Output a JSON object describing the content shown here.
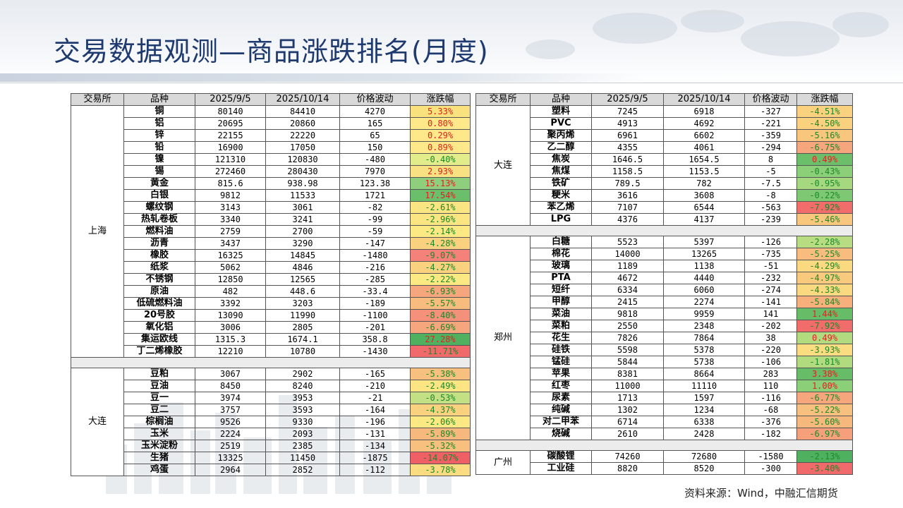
{
  "title": "交易数据观测—商品涨跌排名(月度)",
  "source": "资料来源：Wind，中融汇信期货",
  "headers": [
    "交易所",
    "品种",
    "2025/9/5",
    "2025/10/14",
    "价格波动",
    "涨跌幅"
  ],
  "left_groups": [
    {
      "exchange": "上海",
      "rows": [
        {
          "name": "铜",
          "v1": "80140",
          "v2": "84410",
          "chg": "4270",
          "pct": "5.33%",
          "bg": "#f9e27d",
          "color": "#e02020"
        },
        {
          "name": "铝",
          "v1": "20695",
          "v2": "20860",
          "chg": "165",
          "pct": "0.80%",
          "bg": "#ffe88a",
          "color": "#e02020"
        },
        {
          "name": "锌",
          "v1": "22155",
          "v2": "22220",
          "chg": "65",
          "pct": "0.29%",
          "bg": "#ffe88a",
          "color": "#e02020"
        },
        {
          "name": "铅",
          "v1": "16900",
          "v2": "17050",
          "chg": "150",
          "pct": "0.89%",
          "bg": "#ffe88a",
          "color": "#e02020"
        },
        {
          "name": "镍",
          "v1": "121310",
          "v2": "120830",
          "chg": "-480",
          "pct": "-0.40%",
          "bg": "#e2ec8a",
          "color": "#1a8a2a"
        },
        {
          "name": "锡",
          "v1": "272460",
          "v2": "280430",
          "chg": "7970",
          "pct": "2.93%",
          "bg": "#f7e183",
          "color": "#e02020"
        },
        {
          "name": "黄金",
          "v1": "815.6",
          "v2": "938.98",
          "chg": "123.38",
          "pct": "15.13%",
          "bg": "#8fce7d",
          "color": "#e02020"
        },
        {
          "name": "白银",
          "v1": "9812",
          "v2": "11533",
          "chg": "1721",
          "pct": "17.54%",
          "bg": "#6cbf6a",
          "color": "#e02020"
        },
        {
          "name": "螺纹钢",
          "v1": "3143",
          "v2": "3061",
          "chg": "-82",
          "pct": "-2.61%",
          "bg": "#fbe482",
          "color": "#1a8a2a"
        },
        {
          "name": "热轧卷板",
          "v1": "3340",
          "v2": "3241",
          "chg": "-99",
          "pct": "-2.96%",
          "bg": "#fbe482",
          "color": "#1a8a2a"
        },
        {
          "name": "燃料油",
          "v1": "2759",
          "v2": "2700",
          "chg": "-59",
          "pct": "-2.14%",
          "bg": "#fde983",
          "color": "#1a8a2a"
        },
        {
          "name": "沥青",
          "v1": "3437",
          "v2": "3290",
          "chg": "-147",
          "pct": "-4.28%",
          "bg": "#fad27f",
          "color": "#1a8a2a"
        },
        {
          "name": "橡胶",
          "v1": "16325",
          "v2": "14845",
          "chg": "-1480",
          "pct": "-9.07%",
          "bg": "#f4817a",
          "color": "#1a8a2a"
        },
        {
          "name": "纸浆",
          "v1": "5062",
          "v2": "4846",
          "chg": "-216",
          "pct": "-4.27%",
          "bg": "#fad27f",
          "color": "#1a8a2a"
        },
        {
          "name": "不锈钢",
          "v1": "12850",
          "v2": "12565",
          "chg": "-285",
          "pct": "-2.22%",
          "bg": "#fde983",
          "color": "#1a8a2a"
        },
        {
          "name": "原油",
          "v1": "482",
          "v2": "448.6",
          "chg": "-33.4",
          "pct": "-6.93%",
          "bg": "#f6a67c",
          "color": "#1a8a2a"
        },
        {
          "name": "低硫燃料油",
          "v1": "3392",
          "v2": "3203",
          "chg": "-189",
          "pct": "-5.57%",
          "bg": "#f8bd7e",
          "color": "#1a8a2a"
        },
        {
          "name": "20号胶",
          "v1": "13090",
          "v2": "11990",
          "chg": "-1100",
          "pct": "-8.40%",
          "bg": "#f5907a",
          "color": "#1a8a2a"
        },
        {
          "name": "氧化铝",
          "v1": "3006",
          "v2": "2805",
          "chg": "-201",
          "pct": "-6.69%",
          "bg": "#f6a67c",
          "color": "#1a8a2a"
        },
        {
          "name": "集运欧线",
          "v1": "1315.3",
          "v2": "1674.1",
          "chg": "358.8",
          "pct": "27.28%",
          "bg": "#4fb15f",
          "color": "#e02020"
        },
        {
          "name": "丁二烯橡胶",
          "v1": "12210",
          "v2": "10780",
          "chg": "-1430",
          "pct": "-11.71%",
          "bg": "#f0696b",
          "color": "#1a8a2a"
        }
      ]
    },
    {
      "exchange": "大连",
      "rows": [
        {
          "name": "豆粕",
          "v1": "3067",
          "v2": "2902",
          "chg": "-165",
          "pct": "-5.38%",
          "bg": "#f8c07e",
          "color": "#1a8a2a"
        },
        {
          "name": "豆油",
          "v1": "8450",
          "v2": "8240",
          "chg": "-210",
          "pct": "-2.49%",
          "bg": "#fce582",
          "color": "#1a8a2a"
        },
        {
          "name": "豆一",
          "v1": "3974",
          "v2": "3953",
          "chg": "-21",
          "pct": "-0.53%",
          "bg": "#c4e085",
          "color": "#1a8a2a"
        },
        {
          "name": "豆二",
          "v1": "3757",
          "v2": "3593",
          "chg": "-164",
          "pct": "-4.37%",
          "bg": "#fad27f",
          "color": "#1a8a2a"
        },
        {
          "name": "棕榈油",
          "v1": "9526",
          "v2": "9330",
          "chg": "-196",
          "pct": "-2.06%",
          "bg": "#fde983",
          "color": "#1a8a2a"
        },
        {
          "name": "玉米",
          "v1": "2224",
          "v2": "2093",
          "chg": "-131",
          "pct": "-5.89%",
          "bg": "#f7b87d",
          "color": "#1a8a2a"
        },
        {
          "name": "玉米淀粉",
          "v1": "2519",
          "v2": "2385",
          "chg": "-134",
          "pct": "-5.32%",
          "bg": "#f8c07e",
          "color": "#1a8a2a"
        },
        {
          "name": "生猪",
          "v1": "13325",
          "v2": "11450",
          "chg": "-1875",
          "pct": "-14.07%",
          "bg": "#ee5f66",
          "color": "#1a8a2a"
        },
        {
          "name": "鸡蛋",
          "v1": "2964",
          "v2": "2852",
          "chg": "-112",
          "pct": "-3.78%",
          "bg": "#fbdc80",
          "color": "#1a8a2a"
        }
      ]
    }
  ],
  "right_groups": [
    {
      "exchange": "大连",
      "rows": [
        {
          "name": "塑料",
          "v1": "7245",
          "v2": "6918",
          "chg": "-327",
          "pct": "-4.51%",
          "bg": "#fad27f",
          "color": "#1a8a2a"
        },
        {
          "name": "PVC",
          "v1": "4913",
          "v2": "4692",
          "chg": "-221",
          "pct": "-4.50%",
          "bg": "#fad27f",
          "color": "#1a8a2a"
        },
        {
          "name": "聚丙烯",
          "v1": "6961",
          "v2": "6602",
          "chg": "-359",
          "pct": "-5.16%",
          "bg": "#f9c67e",
          "color": "#1a8a2a"
        },
        {
          "name": "乙二醇",
          "v1": "4355",
          "v2": "4061",
          "chg": "-294",
          "pct": "-6.75%",
          "bg": "#f6a67c",
          "color": "#1a8a2a"
        },
        {
          "name": "焦炭",
          "v1": "1646.5",
          "v2": "1654.5",
          "chg": "8",
          "pct": "0.49%",
          "bg": "#6cbf6a",
          "color": "#e02020"
        },
        {
          "name": "焦煤",
          "v1": "1158.5",
          "v2": "1153.5",
          "chg": "-5",
          "pct": "-0.43%",
          "bg": "#8ccf79",
          "color": "#1a8a2a"
        },
        {
          "name": "铁矿",
          "v1": "789.5",
          "v2": "782",
          "chg": "-7.5",
          "pct": "-0.95%",
          "bg": "#a6d87f",
          "color": "#1a8a2a"
        },
        {
          "name": "粳米",
          "v1": "3616",
          "v2": "3608",
          "chg": "-8",
          "pct": "-0.22%",
          "bg": "#7fc873",
          "color": "#1a8a2a"
        },
        {
          "name": "苯乙烯",
          "v1": "7107",
          "v2": "6544",
          "chg": "-563",
          "pct": "-7.92%",
          "bg": "#f06d6c",
          "color": "#1a8a2a"
        },
        {
          "name": "LPG",
          "v1": "4376",
          "v2": "4137",
          "chg": "-239",
          "pct": "-5.46%",
          "bg": "#f9c67e",
          "color": "#1a8a2a"
        }
      ]
    },
    {
      "exchange": "郑州",
      "rows": [
        {
          "name": "白糖",
          "v1": "5523",
          "v2": "5397",
          "chg": "-126",
          "pct": "-2.28%",
          "bg": "#b7dc82",
          "color": "#1a8a2a"
        },
        {
          "name": "棉花",
          "v1": "14000",
          "v2": "13265",
          "chg": "-735",
          "pct": "-5.25%",
          "bg": "#f8bd7e",
          "color": "#1a8a2a"
        },
        {
          "name": "玻璃",
          "v1": "1189",
          "v2": "1138",
          "chg": "-51",
          "pct": "-4.29%",
          "bg": "#fbd980",
          "color": "#1a8a2a"
        },
        {
          "name": "PTA",
          "v1": "4672",
          "v2": "4440",
          "chg": "-232",
          "pct": "-4.97%",
          "bg": "#f9c97e",
          "color": "#1a8a2a"
        },
        {
          "name": "短纤",
          "v1": "6334",
          "v2": "6060",
          "chg": "-274",
          "pct": "-4.33%",
          "bg": "#fbd980",
          "color": "#1a8a2a"
        },
        {
          "name": "甲醇",
          "v1": "2415",
          "v2": "2274",
          "chg": "-141",
          "pct": "-5.84%",
          "bg": "#f7b07c",
          "color": "#1a8a2a"
        },
        {
          "name": "菜油",
          "v1": "9818",
          "v2": "9959",
          "chg": "141",
          "pct": "1.44%",
          "bg": "#67bd67",
          "color": "#e02020"
        },
        {
          "name": "菜粕",
          "v1": "2550",
          "v2": "2348",
          "chg": "-202",
          "pct": "-7.92%",
          "bg": "#f06d6c",
          "color": "#1a8a2a"
        },
        {
          "name": "花生",
          "v1": "7826",
          "v2": "7864",
          "chg": "38",
          "pct": "0.49%",
          "bg": "#b2db80",
          "color": "#e02020"
        },
        {
          "name": "硅铁",
          "v1": "5598",
          "v2": "5378",
          "chg": "-220",
          "pct": "-3.93%",
          "bg": "#fbdc80",
          "color": "#1a8a2a"
        },
        {
          "name": "锰硅",
          "v1": "5844",
          "v2": "5738",
          "chg": "-106",
          "pct": "-1.81%",
          "bg": "#b2db80",
          "color": "#1a8a2a"
        },
        {
          "name": "苹果",
          "v1": "8381",
          "v2": "8664",
          "chg": "283",
          "pct": "3.38%",
          "bg": "#67bd67",
          "color": "#e02020"
        },
        {
          "name": "红枣",
          "v1": "11000",
          "v2": "11110",
          "chg": "110",
          "pct": "1.00%",
          "bg": "#8ccf79",
          "color": "#e02020"
        },
        {
          "name": "尿素",
          "v1": "1713",
          "v2": "1597",
          "chg": "-116",
          "pct": "-6.77%",
          "bg": "#f6a67c",
          "color": "#1a8a2a"
        },
        {
          "name": "纯碱",
          "v1": "1302",
          "v2": "1234",
          "chg": "-68",
          "pct": "-5.22%",
          "bg": "#f8c07e",
          "color": "#1a8a2a"
        },
        {
          "name": "对二甲苯",
          "v1": "6714",
          "v2": "6338",
          "chg": "-376",
          "pct": "-5.60%",
          "bg": "#f7b87d",
          "color": "#1a8a2a"
        },
        {
          "name": "烧碱",
          "v1": "2610",
          "v2": "2428",
          "chg": "-182",
          "pct": "-6.97%",
          "bg": "#f6a07b",
          "color": "#1a8a2a"
        }
      ]
    },
    {
      "exchange": "广州",
      "rows": [
        {
          "name": "碳酸锂",
          "v1": "74260",
          "v2": "72680",
          "chg": "-1580",
          "pct": "-2.13%",
          "bg": "#4fb15f",
          "color": "#1a8a2a"
        },
        {
          "name": "工业硅",
          "v1": "8820",
          "v2": "8520",
          "chg": "-300",
          "pct": "-3.40%",
          "bg": "#f0696b",
          "color": "#1a8a2a"
        }
      ]
    }
  ]
}
